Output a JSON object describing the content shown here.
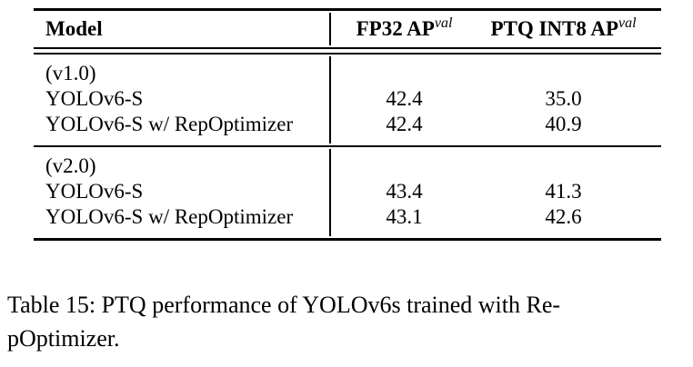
{
  "table": {
    "header": {
      "model": "Model",
      "col_fp32_base": "FP32 AP",
      "col_fp32_sup": "val",
      "col_int8_base": "PTQ INT8 AP",
      "col_int8_sup": "val"
    },
    "sections": [
      {
        "group_label": "(v1.0)",
        "rows": [
          {
            "model": "YOLOv6-S",
            "fp32_ap": "42.4",
            "int8_ap": "35.0"
          },
          {
            "model": "YOLOv6-S w/ RepOptimizer",
            "fp32_ap": "42.4",
            "int8_ap": "40.9"
          }
        ]
      },
      {
        "group_label": "(v2.0)",
        "rows": [
          {
            "model": "YOLOv6-S",
            "fp32_ap": "43.4",
            "int8_ap": "41.3"
          },
          {
            "model": "YOLOv6-S w/ RepOptimizer",
            "fp32_ap": "43.1",
            "int8_ap": "42.6"
          }
        ]
      }
    ]
  },
  "caption": {
    "lines": [
      "Table 15: PTQ performance of YOLOv6s trained with Re-",
      "pOptimizer."
    ]
  },
  "colors": {
    "text": "#000000",
    "background": "#ffffff",
    "rule": "#000000"
  }
}
